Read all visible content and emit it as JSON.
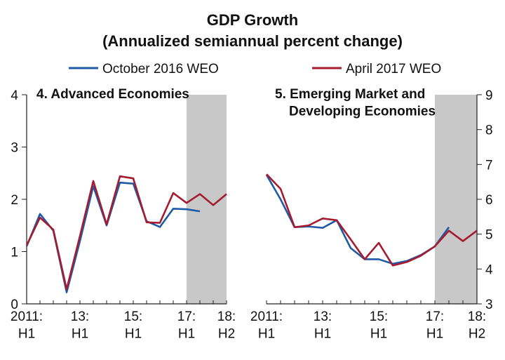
{
  "title": "GDP Growth",
  "subtitle": "(Annualized semiannual percent change)",
  "chart_data": [
    {
      "type": "line",
      "title": "4. Advanced Economies",
      "axis_side": "left",
      "shaded_from": 12,
      "categories": [
        "2011:\nH1",
        null,
        null,
        null,
        "13:\nH1",
        null,
        null,
        null,
        "15:\nH1",
        null,
        null,
        null,
        "17:\nH1",
        null,
        null,
        "18:\nH2"
      ],
      "ylim": [
        0,
        4
      ],
      "yticks": [
        0,
        1,
        2,
        3,
        4
      ],
      "series": [
        {
          "name": "October 2016 WEO",
          "color": "#1f5aa6",
          "values": [
            1.1,
            1.72,
            1.4,
            0.22,
            1.2,
            2.25,
            1.5,
            2.32,
            2.3,
            1.58,
            1.47,
            1.82,
            1.81,
            1.77,
            null,
            null
          ]
        },
        {
          "name": "April 2017 WEO",
          "color": "#a51c30",
          "values": [
            1.12,
            1.65,
            1.42,
            0.28,
            1.3,
            2.35,
            1.52,
            2.44,
            2.4,
            1.56,
            1.55,
            2.12,
            1.93,
            2.1,
            1.89,
            2.1
          ]
        }
      ]
    },
    {
      "type": "line",
      "title": "5. Emerging Market and\nDeveloping Economies",
      "axis_side": "right",
      "shaded_from": 12,
      "categories": [
        "2011:\nH1",
        null,
        null,
        null,
        "13:\nH1",
        null,
        null,
        null,
        "15:\nH1",
        null,
        null,
        null,
        "17:\nH1",
        null,
        null,
        "18:\nH2"
      ],
      "ylim": [
        3,
        9
      ],
      "yticks": [
        3,
        4,
        5,
        6,
        7,
        8,
        9
      ],
      "series": [
        {
          "name": "October 2016 WEO",
          "color": "#1f5aa6",
          "values": [
            6.7,
            6.0,
            5.2,
            5.22,
            5.18,
            5.4,
            4.6,
            4.28,
            4.28,
            4.15,
            4.23,
            4.4,
            4.65,
            5.2,
            null,
            null
          ]
        },
        {
          "name": "April 2017 WEO",
          "color": "#a51c30",
          "values": [
            6.72,
            6.3,
            5.2,
            5.25,
            5.45,
            5.4,
            4.85,
            4.28,
            4.75,
            4.1,
            4.2,
            4.38,
            4.65,
            5.1,
            4.8,
            5.1
          ]
        }
      ]
    }
  ]
}
